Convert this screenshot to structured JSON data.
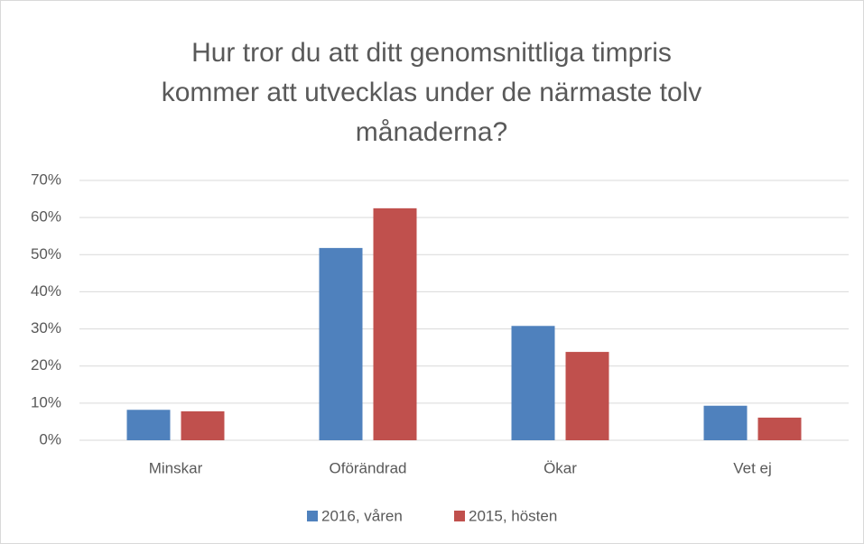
{
  "chart_data": {
    "type": "bar",
    "title": [
      "Hur tror du att ditt genomsnittliga timpris",
      "kommer att utvecklas under de närmaste tolv",
      "månaderna?"
    ],
    "categories": [
      "Minskar",
      "Oförändrad",
      "Ökar",
      "Vet ej"
    ],
    "series": [
      {
        "name": "2016, våren",
        "color": "#4f81bd",
        "values": [
          8.2,
          51.8,
          30.8,
          9.3
        ]
      },
      {
        "name": "2015, hösten",
        "color": "#c0504d",
        "values": [
          7.8,
          62.5,
          23.8,
          6.1
        ]
      }
    ],
    "ylim": [
      0,
      70
    ],
    "yticks": [
      {
        "value": 0,
        "label": "0%"
      },
      {
        "value": 10,
        "label": "10%"
      },
      {
        "value": 20,
        "label": "20%"
      },
      {
        "value": 30,
        "label": "30%"
      },
      {
        "value": 40,
        "label": "40%"
      },
      {
        "value": 50,
        "label": "50%"
      },
      {
        "value": 60,
        "label": "60%"
      },
      {
        "value": 70,
        "label": "70%"
      }
    ],
    "grid": true,
    "legend": "bottom"
  }
}
